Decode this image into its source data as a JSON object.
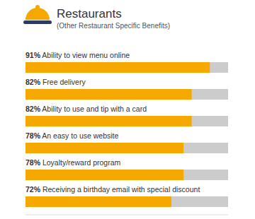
{
  "chart_data": {
    "type": "bar",
    "orientation": "horizontal",
    "title": "Restaurants",
    "subtitle": "(Other Restaurant Specific Benefits)",
    "categories": [
      "Ability to view menu online",
      "Free delivery",
      "Ability to use and tip with a card",
      "An easy to use website",
      "Loyalty/reward program",
      "Receiving a birthday email with special discount"
    ],
    "values": [
      91,
      82,
      82,
      78,
      78,
      72
    ],
    "value_labels": [
      "91%",
      "82%",
      "82%",
      "78%",
      "78%",
      "72%"
    ],
    "data_labels": true,
    "color": "#f5a800",
    "xlim": [
      0,
      100
    ],
    "tick_labels": false,
    "grid": false
  }
}
